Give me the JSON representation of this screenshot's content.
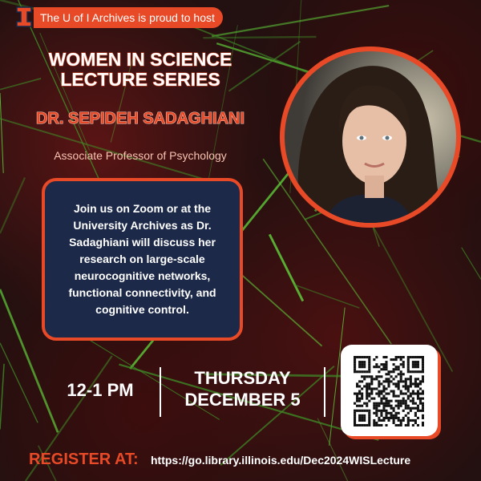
{
  "header": {
    "logo_letter": "I",
    "host_text": "The U of I Archives is proud to host"
  },
  "event": {
    "series_line1": "WOMEN IN SCIENCE",
    "series_line2": "LECTURE SERIES",
    "speaker": "DR. SEPIDEH SADAGHIANI",
    "role": "Associate Professor of Psychology",
    "description": "Join us on Zoom or at the University Archives as Dr. Sadaghiani will discuss her research on large-scale neurocognitive networks, functional connectivity, and cognitive control.",
    "time": "12-1 PM",
    "day": "THURSDAY",
    "date": "DECEMBER 5"
  },
  "registration": {
    "label": "REGISTER AT:",
    "url": "https://go.library.illinois.edu/Dec2024WISLecture"
  },
  "colors": {
    "accent": "#e84a27",
    "navy": "#1c2948",
    "neuron_green": "#4fb52f"
  },
  "icons": {
    "logo": "block-i-logo",
    "qr": "qr-code"
  }
}
